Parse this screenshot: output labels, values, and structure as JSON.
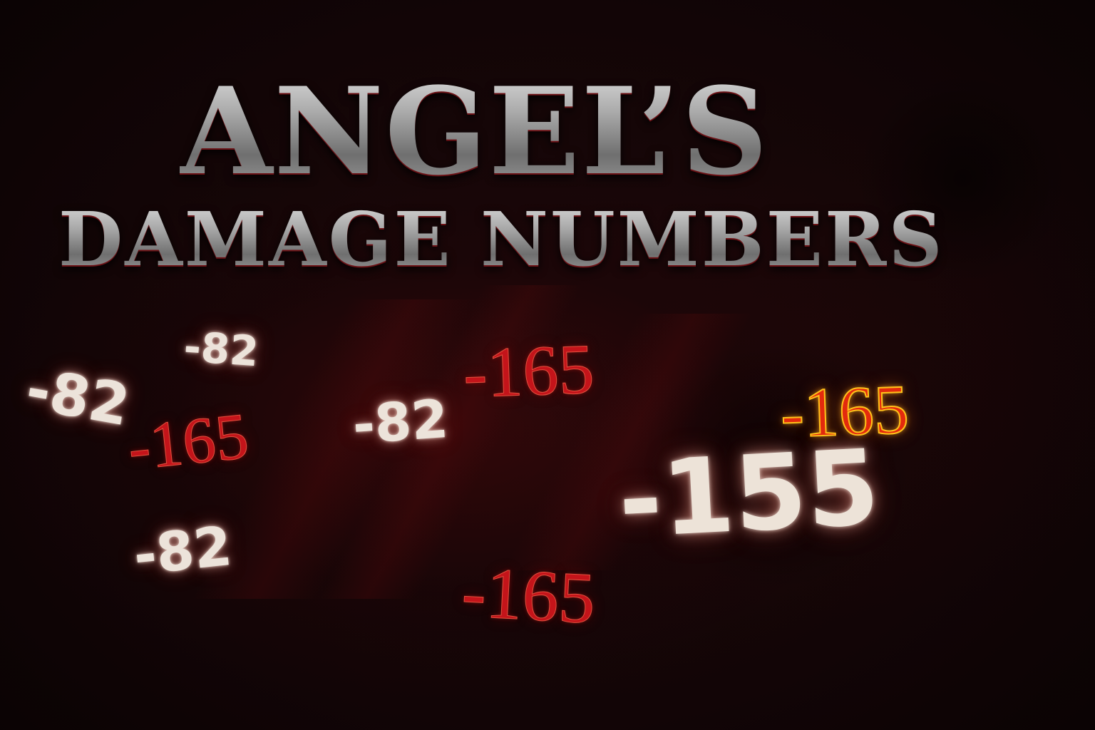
{
  "title": {
    "line1": "ANGEL’S",
    "line2": "DAMAGE NUMBERS"
  },
  "damage_numbers": [
    {
      "value": "-82",
      "style": "white"
    },
    {
      "value": "-82",
      "style": "white"
    },
    {
      "value": "-165",
      "style": "red"
    },
    {
      "value": "-82",
      "style": "white"
    },
    {
      "value": "-165",
      "style": "red"
    },
    {
      "value": "-165",
      "style": "crit"
    },
    {
      "value": "-155",
      "style": "big-white"
    },
    {
      "value": "-82",
      "style": "white"
    },
    {
      "value": "-165",
      "style": "red"
    }
  ],
  "colors": {
    "background": "#120506",
    "title_metal": "#a9a9a9",
    "title_rim": "#781418",
    "damage_white": "#ece3da",
    "damage_red": "#c4141a",
    "crit_fill": "#e32a0e",
    "crit_outline": "#ffc21a"
  }
}
